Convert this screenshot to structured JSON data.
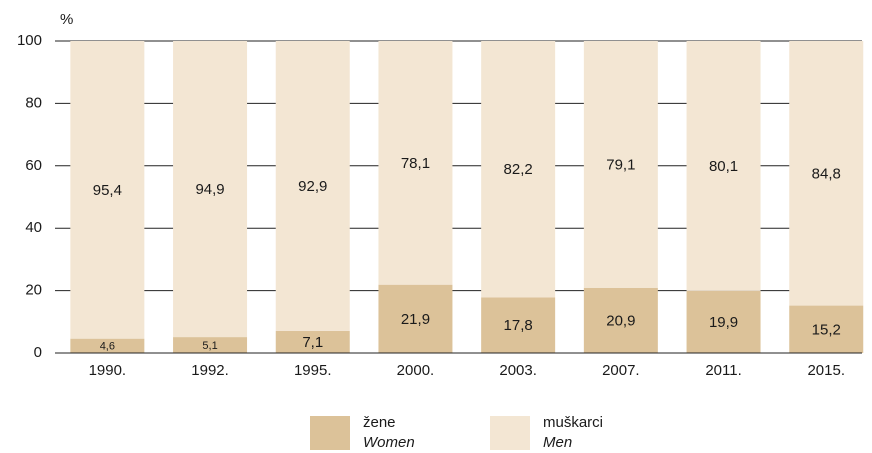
{
  "chart_data": {
    "type": "stacked_bar",
    "y_label": "%",
    "categories": [
      "1990.",
      "1992.",
      "1995.",
      "2000.",
      "2003.",
      "2007.",
      "2011.",
      "2015."
    ],
    "series": [
      {
        "name": "žene",
        "name_en": "Women",
        "color": "#dcc299",
        "values": [
          4.6,
          5.1,
          7.1,
          21.9,
          17.8,
          20.9,
          19.9,
          15.2
        ],
        "value_labels": [
          "4,6",
          "5,1",
          "7,1",
          "21,9",
          "17,8",
          "20,9",
          "19,9",
          "15,2"
        ]
      },
      {
        "name": "muškarci",
        "name_en": "Men",
        "color": "#f3e6d3",
        "values": [
          95.4,
          94.9,
          92.9,
          78.1,
          82.2,
          79.1,
          80.1,
          84.8
        ],
        "value_labels": [
          "95,4",
          "94,9",
          "92,9",
          "78,1",
          "82,2",
          "79,1",
          "80,1",
          "84,8"
        ]
      }
    ],
    "ylim": [
      0,
      100
    ],
    "yticks": [
      0,
      20,
      40,
      60,
      80,
      100
    ],
    "grid": true
  }
}
